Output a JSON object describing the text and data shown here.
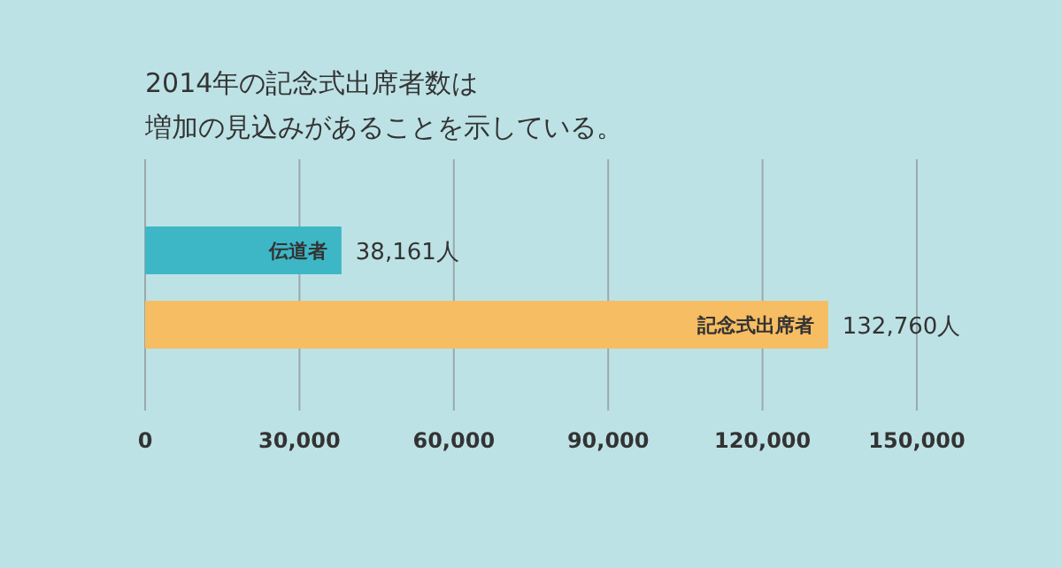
{
  "chart_data": {
    "type": "bar",
    "orientation": "horizontal",
    "title": "2014年の記念式出席者数は",
    "subtitle": "増加の見込みがあることを示している。",
    "categories": [
      "伝道者",
      "記念式出席者"
    ],
    "values": [
      38161,
      132760
    ],
    "colors": [
      "#3db7c6",
      "#f6bd63"
    ],
    "value_labels": [
      "38,161人",
      "132,760人"
    ],
    "xlim": [
      0,
      150000
    ],
    "xticks": [
      0,
      {
        "value": 30000,
        "label": "30,000"
      },
      {
        "value": 60000,
        "label": "60,000"
      },
      {
        "value": 90000,
        "label": "90,000"
      },
      {
        "value": 120000,
        "label": "120,000"
      },
      {
        "value": 150000,
        "label": "150,000"
      }
    ],
    "grid": "x"
  }
}
